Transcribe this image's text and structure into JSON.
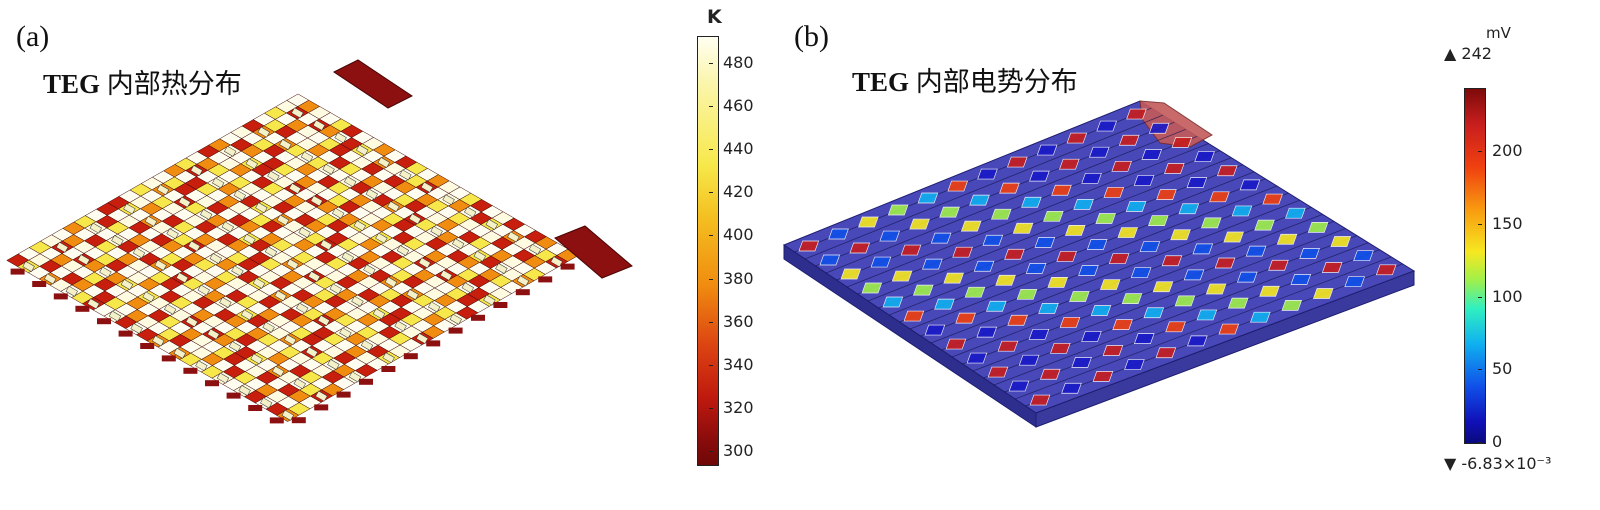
{
  "panel_a": {
    "label": "(a)",
    "title_bold": "TEG",
    "title_rest": " 内部热分布",
    "colorbar": {
      "unit": "K",
      "ticks": [
        "480",
        "460",
        "440",
        "420",
        "400",
        "380",
        "360",
        "340",
        "320",
        "300"
      ]
    }
  },
  "panel_b": {
    "label": "(b)",
    "title_bold": "TEG",
    "title_rest": " 内部电势分布",
    "colorbar": {
      "unit": "mV",
      "max_label": "▲ 242",
      "min_label": "▼ -6.83×10⁻³",
      "ticks": [
        "200",
        "150",
        "100",
        "50",
        "0"
      ]
    }
  },
  "colors": {
    "heat_dark": "#7a0a0a",
    "heat_red": "#c81e0e",
    "heat_orange": "#f08c10",
    "heat_yellow": "#f6e84a",
    "heat_white": "#fffbe0",
    "potential_bg": "#3a3aa8",
    "potential_edge": "#1e1e70"
  }
}
